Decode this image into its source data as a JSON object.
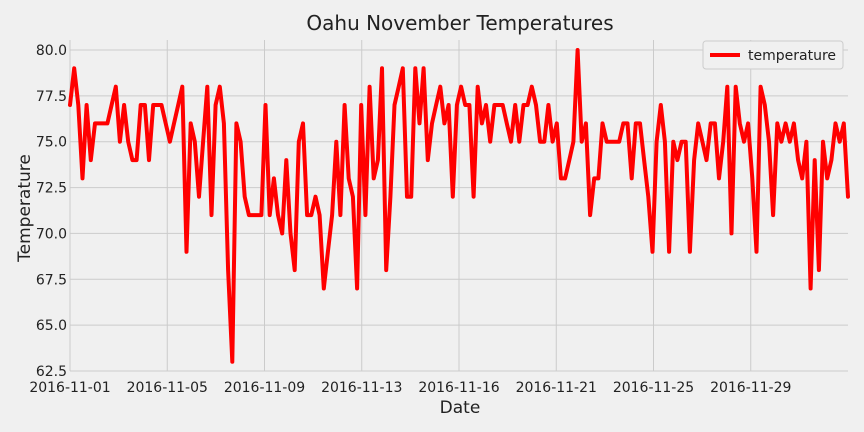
{
  "chart_data": {
    "type": "line",
    "title": "Oahu November Temperatures",
    "xlabel": "Date",
    "ylabel": "Temperature",
    "ylim": [
      62.5,
      80.0
    ],
    "yticks": [
      62.5,
      65.0,
      67.5,
      70.0,
      72.5,
      75.0,
      77.5,
      80.0
    ],
    "xticks": [
      "2016-11-01",
      "2016-11-05",
      "2016-11-09",
      "2016-11-13",
      "2016-11-16",
      "2016-11-21",
      "2016-11-25",
      "2016-11-29"
    ],
    "grid": true,
    "legend_position": "top-right",
    "colors": {
      "line": "#ff0000",
      "background": "#f0f0f0",
      "grid": "#cbcbcb"
    },
    "series": [
      {
        "name": "temperature",
        "values": [
          77,
          79,
          77,
          73,
          77,
          74,
          76,
          76,
          76,
          76,
          77,
          78,
          75,
          77,
          75,
          74,
          74,
          77,
          77,
          74,
          77,
          77,
          77,
          76,
          75,
          76,
          77,
          78,
          69,
          76,
          75,
          72,
          75,
          78,
          71,
          77,
          78,
          76,
          68,
          63,
          76,
          75,
          72,
          71,
          71,
          71,
          71,
          77,
          71,
          73,
          71,
          70,
          74,
          70,
          68,
          75,
          76,
          71,
          71,
          72,
          71,
          67,
          69,
          71,
          75,
          71,
          77,
          73,
          72,
          67,
          77,
          71,
          78,
          73,
          74,
          79,
          68,
          72,
          77,
          78,
          79,
          72,
          72,
          79,
          76,
          79,
          74,
          76,
          77,
          78,
          76,
          77,
          72,
          77,
          78,
          77,
          77,
          72,
          78,
          76,
          77,
          75,
          77,
          77,
          77,
          76,
          75,
          77,
          75,
          77,
          77,
          78,
          77,
          75,
          75,
          77,
          75,
          76,
          73,
          73,
          74,
          75,
          80,
          75,
          76,
          71,
          73,
          73,
          76,
          75,
          75,
          75,
          75,
          76,
          76,
          73,
          76,
          76,
          74,
          72,
          69,
          75,
          77,
          75,
          69,
          75,
          74,
          75,
          75,
          69,
          74,
          76,
          75,
          74,
          76,
          76,
          73,
          75,
          78,
          70,
          78,
          76,
          75,
          76,
          73,
          69,
          78,
          77,
          75,
          71,
          76,
          75,
          76,
          75,
          76,
          74,
          73,
          75,
          67,
          74,
          68,
          75,
          73,
          74,
          76,
          75,
          76,
          72
        ]
      }
    ]
  }
}
